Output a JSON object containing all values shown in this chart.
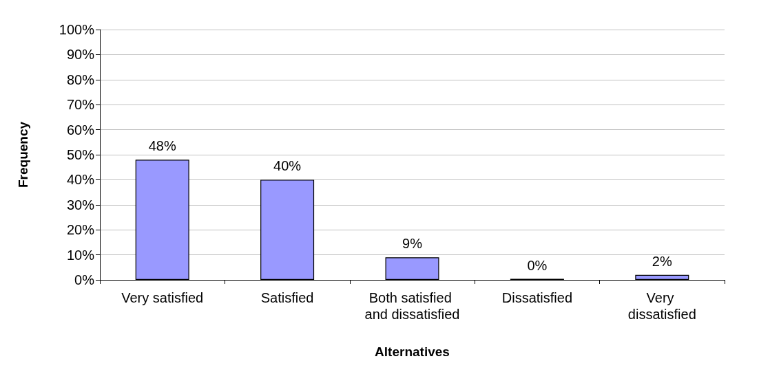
{
  "chart_data": {
    "type": "bar",
    "xlabel": "Alternatives",
    "ylabel": "Frequency",
    "categories": [
      "Very satisfied",
      "Satisfied",
      "Both satisfied and dissatisfied",
      "Dissatisfied",
      "Very dissatisfied"
    ],
    "values": [
      48,
      40,
      9,
      0.4,
      2
    ],
    "value_labels": [
      "48%",
      "40%",
      "9%",
      "0%",
      "2%"
    ],
    "color": "#9999ff",
    "ylim": [
      0,
      100
    ],
    "yticks": [
      {
        "value": 0,
        "label": "0%"
      },
      {
        "value": 10,
        "label": "10%"
      },
      {
        "value": 20,
        "label": "20%"
      },
      {
        "value": 30,
        "label": "30%"
      },
      {
        "value": 40,
        "label": "40%"
      },
      {
        "value": 50,
        "label": "50%"
      },
      {
        "value": 60,
        "label": "60%"
      },
      {
        "value": 70,
        "label": "70%"
      },
      {
        "value": 80,
        "label": "80%"
      },
      {
        "value": 90,
        "label": "90%"
      },
      {
        "value": 100,
        "label": "100%"
      }
    ],
    "grid": "y"
  }
}
